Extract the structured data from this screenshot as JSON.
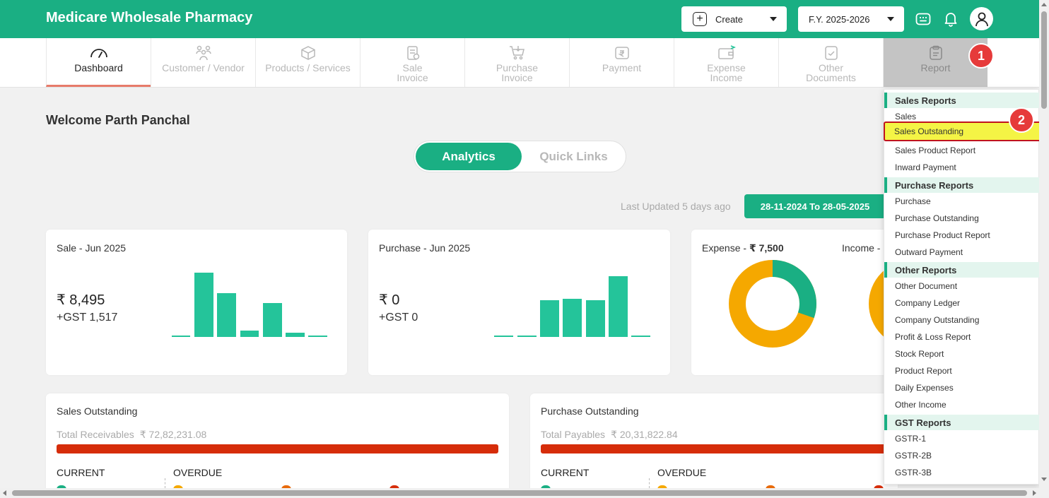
{
  "header": {
    "brand": "Medicare Wholesale Pharmacy",
    "create_label": "Create",
    "fy_label": "F.Y. 2025-2026"
  },
  "nav": {
    "items": [
      {
        "label": "Dashboard",
        "icon": "speedometer-icon"
      },
      {
        "label": "Customer / Vendor",
        "icon": "people-icon"
      },
      {
        "label": "Products / Services",
        "icon": "box-icon"
      },
      {
        "label": "Sale Invoice",
        "icon": "invoice-icon"
      },
      {
        "label": "Purchase Invoice",
        "icon": "cart-icon"
      },
      {
        "label": "Payment",
        "icon": "rupee-icon"
      },
      {
        "label": "Expense Income",
        "icon": "wallet-icon"
      },
      {
        "label": "Other Documents",
        "icon": "document-icon"
      },
      {
        "label": "Report",
        "icon": "clipboard-icon"
      }
    ]
  },
  "annotations": {
    "badge1": "1",
    "badge2": "2"
  },
  "main": {
    "welcome": "Welcome Parth Panchal",
    "tab_analytics": "Analytics",
    "tab_quick_links": "Quick Links",
    "last_updated": "Last Updated 5 days ago",
    "date_range": "28-11-2024 To 28-05-2025"
  },
  "sale_card": {
    "title": "Sale - Jun 2025",
    "amount": "₹ 8,495",
    "gst": "+GST 1,517"
  },
  "purchase_card": {
    "title": "Purchase - Jun 2025",
    "amount": "₹ 0",
    "gst": "+GST 0"
  },
  "expense_card": {
    "expense_label": "Expense - ",
    "expense_value": "₹ 7,500",
    "income_label": "Income - "
  },
  "sales_outstanding": {
    "title": "Sales Outstanding",
    "total_label": "Total Receivables",
    "total_value": "₹ 72,82,231.08",
    "current": "CURRENT",
    "overdue": "OVERDUE"
  },
  "purchase_outstanding": {
    "title": "Purchase Outstanding",
    "total_label": "Total Payables",
    "total_value": "₹ 20,31,822.84",
    "current": "CURRENT",
    "overdue": "OVERDUE"
  },
  "report_menu": {
    "sections": [
      {
        "heading": "Sales Reports",
        "items": [
          "Sales",
          "Sales Outstanding",
          "Sales Product Report",
          "Inward Payment"
        ]
      },
      {
        "heading": "Purchase Reports",
        "items": [
          "Purchase",
          "Purchase Outstanding",
          "Purchase Product Report",
          "Outward Payment"
        ]
      },
      {
        "heading": "Other Reports",
        "items": [
          "Other Document",
          "Company Ledger",
          "Company Outstanding",
          "Profit & Loss Report",
          "Stock Report",
          "Product Report",
          "Daily Expenses",
          "Other Income"
        ]
      },
      {
        "heading": "GST Reports",
        "items": [
          "GSTR-1",
          "GSTR-2B",
          "GSTR-3B"
        ]
      }
    ],
    "highlighted": "Sales Outstanding"
  },
  "colors": {
    "brand": "#1aaf83",
    "bar": "#24c49a",
    "donut_expense": "#1aaf83",
    "donut_other": "#f5a800",
    "outstanding_bar": "#d62d0a",
    "highlight": "#f4f445"
  }
}
